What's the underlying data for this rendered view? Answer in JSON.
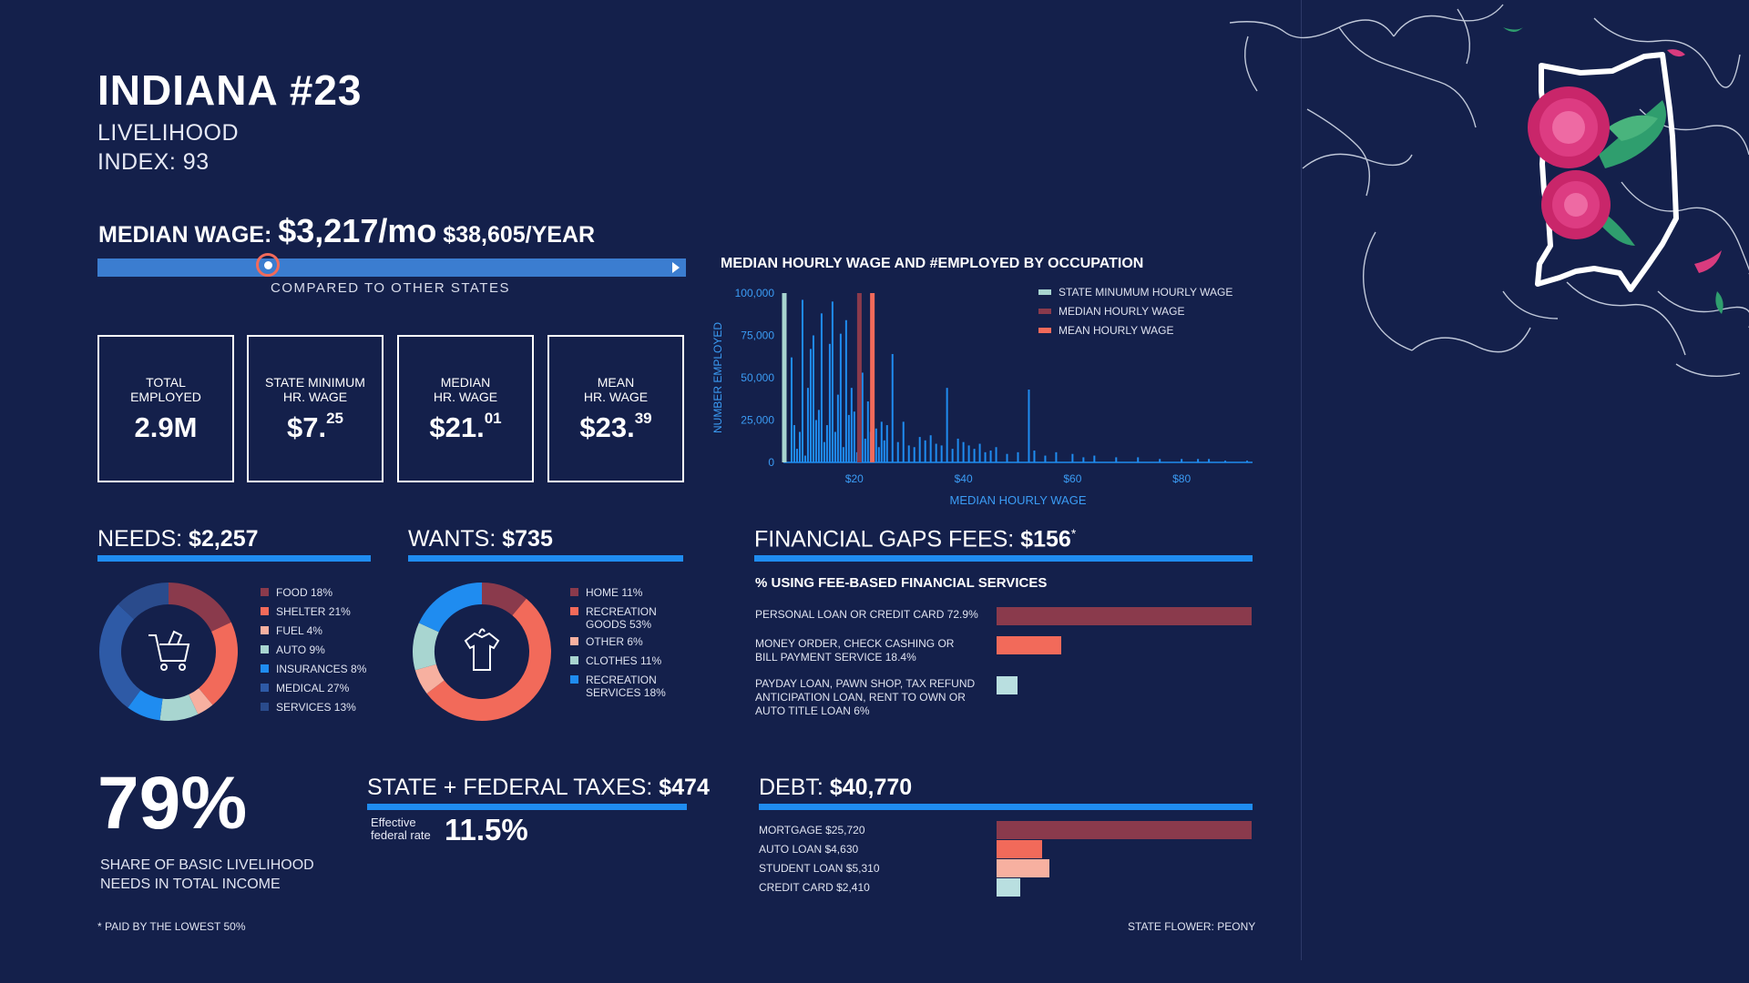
{
  "header": {
    "title": "INDIANA #23",
    "subtitle_line1": "LIVELIHOOD",
    "subtitle_line2": "INDEX: 93"
  },
  "median_wage": {
    "label": "MEDIAN WAGE:",
    "monthly": "$3,217/mo",
    "yearly": "$38,605/YEAR",
    "compare_label": "COMPARED TO OTHER STATES",
    "rank_fraction": 0.29
  },
  "stats": [
    {
      "label_line1": "TOTAL",
      "label_line2": "EMPLOYED",
      "value": "2.9M",
      "cents": ""
    },
    {
      "label_line1": "STATE MINIMUM",
      "label_line2": "HR. WAGE",
      "value": "$7.",
      "cents": "25"
    },
    {
      "label_line1": "MEDIAN",
      "label_line2": "HR. WAGE",
      "value": "$21.",
      "cents": "01"
    },
    {
      "label_line1": "MEAN",
      "label_line2": "HR. WAGE",
      "value": "$23.",
      "cents": "39"
    }
  ],
  "needs": {
    "label": "NEEDS:",
    "amount": "$2,257",
    "icon": "shopping-cart-icon"
  },
  "wants": {
    "label": "WANTS:",
    "amount": "$735",
    "icon": "tshirt-icon"
  },
  "fees": {
    "label": "FINANCIAL GAPS FEES:",
    "amount": "$156",
    "mark": "*",
    "subtitle": "% USING FEE-BASED FINANCIAL SERVICES"
  },
  "taxes": {
    "label": "STATE + FEDERAL TAXES:",
    "amount": "$474",
    "rate_label_line1": "Effective",
    "rate_label_line2": "federal rate",
    "rate": "11.5%"
  },
  "debt": {
    "label": "DEBT:",
    "amount": "$40,770"
  },
  "share": {
    "value": "79%",
    "line1": "SHARE OF BASIC LIVELIHOOD",
    "line2": "NEEDS IN TOTAL INCOME"
  },
  "footnote": "* PAID BY THE LOWEST 50%",
  "state_flower": "STATE FLOWER: PEONY",
  "colors": {
    "background": "#14204b",
    "accent_blue": "#1f8cf0",
    "dark_red": "#8a3a4c",
    "coral": "#f26a5a",
    "pink": "#f7b0a0",
    "pale_teal": "#a8d5d0",
    "mid_blue": "#2e5aa6",
    "light_teal": "#b9dfe0"
  },
  "chart_data": [
    {
      "type": "bar",
      "title": "MEDIAN HOURLY WAGE AND #EMPLOYED BY OCCUPATION",
      "xlabel": "MEDIAN HOURLY WAGE",
      "ylabel": "NUMBER EMPLOYED",
      "xlim": [
        7,
        93
      ],
      "ylim": [
        0,
        100000
      ],
      "yticks": [
        "100,000",
        "75,000",
        "50,000",
        "25,000",
        "0"
      ],
      "xticks": [
        "$20",
        "$40",
        "$60",
        "$80"
      ],
      "xtick_values": [
        20,
        40,
        60,
        80
      ],
      "ytick_values": [
        100000,
        75000,
        50000,
        25000,
        0
      ],
      "legend": [
        "STATE MINUMUM HOURLY WAGE",
        "MEDIAN HOURLY WAGE",
        "MEAN HOURLY WAGE"
      ],
      "reference_lines": [
        {
          "name": "STATE MINUMUM HOURLY WAGE",
          "x": 7.25,
          "color": "#a8d5d0"
        },
        {
          "name": "MEDIAN HOURLY WAGE",
          "x": 21.01,
          "color": "#8a3a4c"
        },
        {
          "name": "MEAN HOURLY WAGE",
          "x": 23.39,
          "color": "#f26a5a"
        }
      ],
      "series": [
        {
          "name": "",
          "x": [
            8.5,
            9,
            9.5,
            10,
            10.5,
            11,
            11.5,
            12,
            12.5,
            13,
            13.5,
            14,
            14.5,
            15,
            15.5,
            16,
            16.5,
            17,
            17.5,
            18,
            18.5,
            19,
            19.5,
            20,
            20.5,
            21.5,
            22,
            22.5,
            23,
            24,
            24.5,
            25,
            25.5,
            26,
            27,
            28,
            29,
            30,
            31,
            32,
            33,
            34,
            35,
            36,
            37,
            38,
            39,
            40,
            41,
            42,
            43,
            44,
            45,
            46,
            48,
            50,
            52,
            53,
            55,
            57,
            60,
            62,
            64,
            68,
            72,
            76,
            80,
            83,
            85,
            88,
            92
          ],
          "y": [
            62000,
            22000,
            8000,
            18000,
            96000,
            4000,
            44000,
            67000,
            75000,
            25000,
            31000,
            88000,
            12000,
            22000,
            70000,
            95000,
            18000,
            40000,
            76000,
            9000,
            84000,
            28000,
            44000,
            30000,
            6000,
            53000,
            14000,
            36000,
            18000,
            20000,
            9000,
            24000,
            13000,
            22000,
            64000,
            12000,
            24000,
            10000,
            9000,
            15000,
            13000,
            16000,
            11000,
            10000,
            44000,
            8000,
            14000,
            12000,
            10000,
            8000,
            11000,
            6000,
            7000,
            9000,
            5000,
            6000,
            43000,
            7000,
            4000,
            6000,
            5000,
            3000,
            4000,
            3000,
            3000,
            2000,
            2000,
            2000,
            2000,
            1000,
            1000
          ]
        }
      ]
    },
    {
      "type": "pie",
      "title": "NEEDS",
      "categories": [
        "FOOD 18%",
        "SHELTER 21%",
        "FUEL 4%",
        "AUTO 9%",
        "INSURANCES 8%",
        "MEDICAL 27%",
        "SERVICES 13%"
      ],
      "values": [
        18,
        21,
        4,
        9,
        8,
        27,
        13
      ],
      "colors": [
        "#8a3a4c",
        "#f26a5a",
        "#f7b0a0",
        "#a8d5d0",
        "#1f8cf0",
        "#2e5aa6",
        "#2a4b8c"
      ]
    },
    {
      "type": "pie",
      "title": "WANTS",
      "categories": [
        "HOME 11%",
        "RECREATION GOODS 53%",
        "OTHER 6%",
        "CLOTHES 11%",
        "RECREATION SERVICES 18%"
      ],
      "legend_lines": [
        [
          "HOME 11%"
        ],
        [
          "RECREATION",
          "GOODS 53%"
        ],
        [
          "OTHER 6%"
        ],
        [
          "CLOTHES 11%"
        ],
        [
          "RECREATION",
          "SERVICES 18%"
        ]
      ],
      "values": [
        11,
        53,
        6,
        11,
        18
      ],
      "colors": [
        "#8a3a4c",
        "#f26a5a",
        "#f7b0a0",
        "#a8d5d0",
        "#1f8cf0"
      ]
    },
    {
      "type": "bar",
      "title": "% USING FEE-BASED FINANCIAL SERVICES",
      "categories": [
        "PERSONAL LOAN OR CREDIT CARD 72.9%",
        "MONEY ORDER, CHECK CASHING OR BILL PAYMENT SERVICE 18.4%",
        "PAYDAY LOAN, PAWN SHOP, TAX REFUND ANTICIPATION LOAN, RENT TO OWN OR AUTO TITLE LOAN 6%"
      ],
      "label_lines": [
        [
          "PERSONAL LOAN OR CREDIT CARD 72.9%"
        ],
        [
          "MONEY ORDER, CHECK CASHING OR",
          "BILL PAYMENT SERVICE 18.4%"
        ],
        [
          "PAYDAY LOAN, PAWN SHOP, TAX REFUND",
          "ANTICIPATION LOAN, RENT TO OWN OR",
          "AUTO TITLE LOAN 6%"
        ]
      ],
      "values": [
        72.9,
        18.4,
        6
      ],
      "colors": [
        "#8a3a4c",
        "#f26a5a",
        "#b9dfe0"
      ]
    },
    {
      "type": "bar",
      "title": "DEBT",
      "categories": [
        "MORTGAGE $25,720",
        "AUTO LOAN $4,630",
        "STUDENT LOAN $5,310",
        "CREDIT CARD $2,410"
      ],
      "values": [
        25720,
        4630,
        5310,
        2410
      ],
      "colors": [
        "#8a3a4c",
        "#f26a5a",
        "#f7b0a0",
        "#b9dfe0"
      ]
    }
  ]
}
